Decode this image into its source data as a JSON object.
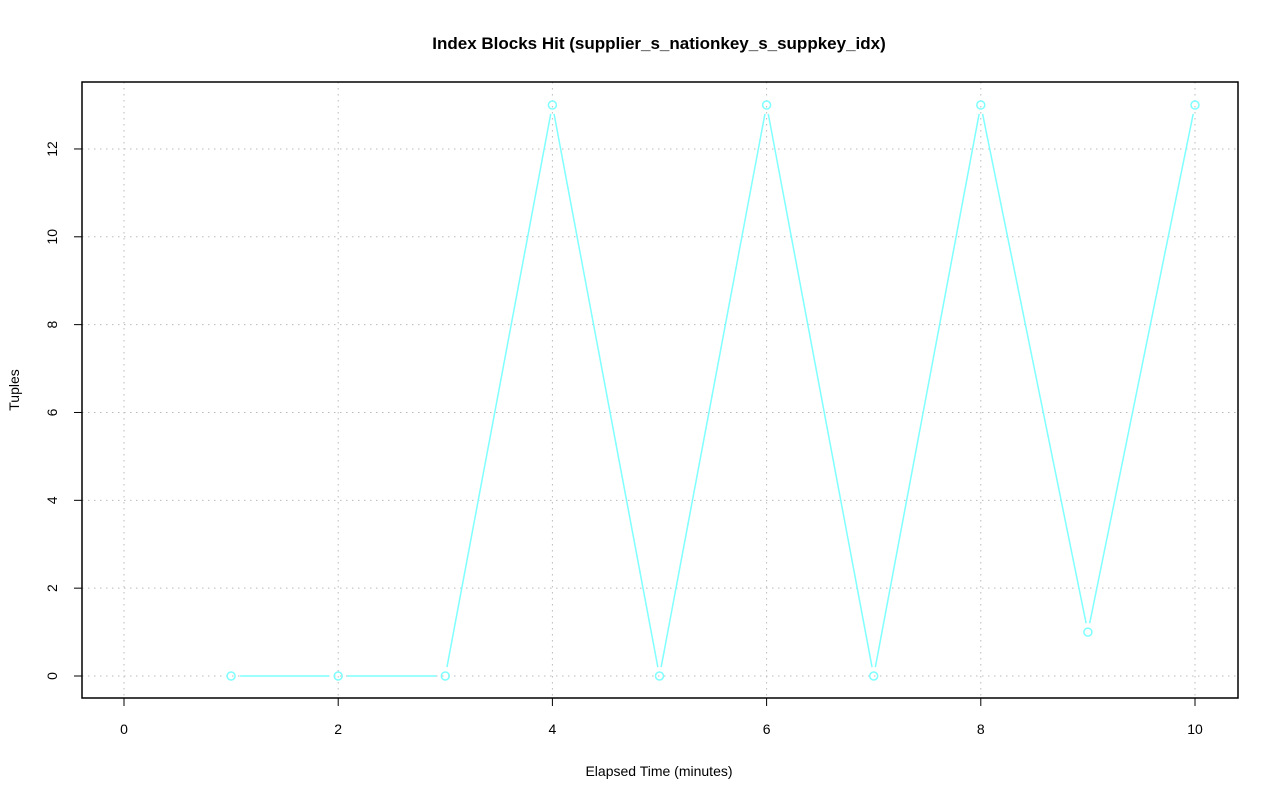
{
  "chart_data": {
    "type": "line",
    "title": "Index Blocks Hit (supplier_s_nationkey_s_suppkey_idx)",
    "xlabel": "Elapsed Time (minutes)",
    "ylabel": "Tuples",
    "x": [
      1,
      2,
      3,
      4,
      5,
      6,
      7,
      8,
      9,
      10
    ],
    "y": [
      0,
      0,
      0,
      13,
      0,
      13,
      0,
      13,
      1,
      13
    ],
    "xlim": [
      -0.4,
      10.4
    ],
    "ylim": [
      -0.5,
      13.5
    ],
    "xticks": [
      0,
      2,
      4,
      6,
      8,
      10
    ],
    "yticks": [
      0,
      2,
      4,
      6,
      8,
      10,
      12
    ],
    "grid": true,
    "series_color": "#7fffff",
    "marker": "open-circle"
  }
}
